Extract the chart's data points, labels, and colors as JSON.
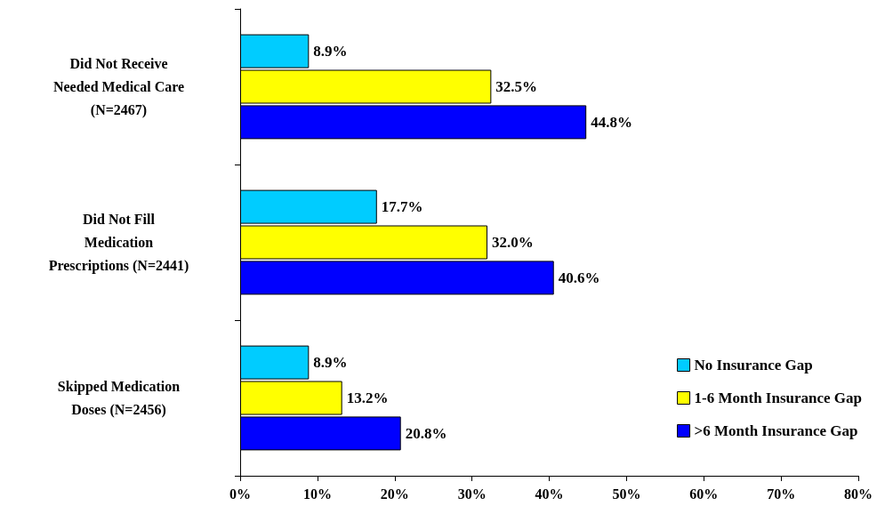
{
  "chart_data": {
    "type": "bar",
    "orientation": "horizontal",
    "categories": [
      "Did Not Receive\nNeeded Medical Care\n(N=2467)",
      "Did Not Fill\nMedication\nPrescriptions (N=2441)",
      "Skipped Medication\nDoses (N=2456)"
    ],
    "series": [
      {
        "name": "No Insurance Gap",
        "color": "#00ccff",
        "values": [
          8.9,
          17.7,
          8.9
        ],
        "value_labels": [
          "8.9%",
          "17.7%",
          "8.9%"
        ]
      },
      {
        "name": "1-6 Month Insurance Gap",
        "color": "#ffff00",
        "values": [
          32.5,
          32.0,
          13.2
        ],
        "value_labels": [
          "32.5%",
          "32.0%",
          "13.2%"
        ]
      },
      {
        "name": ">6 Month Insurance Gap",
        "color": "#0000ff",
        "values": [
          44.8,
          40.6,
          20.8
        ],
        "value_labels": [
          "44.8%",
          "40.6%",
          "20.8%"
        ]
      }
    ],
    "xlim": [
      0,
      80
    ],
    "xticks": [
      {
        "value": 0,
        "label": "0%"
      },
      {
        "value": 10,
        "label": "10%"
      },
      {
        "value": 20,
        "label": "20%"
      },
      {
        "value": 30,
        "label": "30%"
      },
      {
        "value": 40,
        "label": "40%"
      },
      {
        "value": 50,
        "label": "50%"
      },
      {
        "value": 60,
        "label": "60%"
      },
      {
        "value": 70,
        "label": "70%"
      },
      {
        "value": 80,
        "label": "80%"
      }
    ],
    "grid": false,
    "legend": "bottom right"
  }
}
